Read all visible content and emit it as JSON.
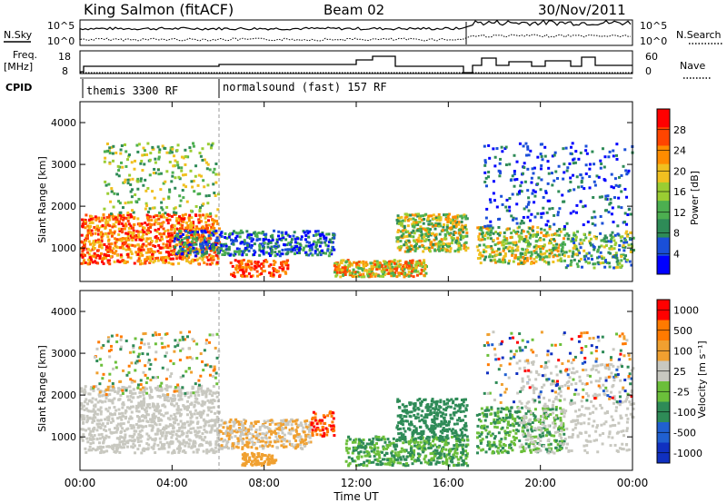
{
  "header": {
    "title": "King Salmon (fitACF)",
    "beam": "Beam 02",
    "date": "30/Nov/2011"
  },
  "top_panels": {
    "nsky_label": "N.Sky",
    "nsky_hi": "10^5",
    "nsky_lo": "10^0",
    "nsearch_hi": "10^5",
    "nsearch_lo": "10^0",
    "nsearch_label": "N.Search",
    "freq_label_1": "Freq.",
    "freq_label_2": "[MHz]",
    "freq_hi": "18",
    "freq_lo": "8",
    "nave_hi": "60",
    "nave_lo": "0",
    "nave_label": "Nave",
    "cpid_label": "CPID",
    "cpid_1": "themis 3300 RF",
    "cpid_2": "normalsound (fast) 157 RF"
  },
  "chart_data": [
    {
      "type": "heatmap",
      "name": "power",
      "ylabel": "Slant Range [km]",
      "yticks": [
        "1000",
        "2000",
        "3000",
        "4000"
      ],
      "ylim": [
        200,
        4500
      ],
      "colorbar_label": "Power [dB]",
      "colorbar_ticks": [
        "4",
        "8",
        "12",
        "16",
        "20",
        "24",
        "28"
      ],
      "colors": [
        "#0000ff",
        "#1a4fd8",
        "#2e8b57",
        "#4caf50",
        "#9acd32",
        "#f0c020",
        "#ff8c00",
        "#ff4500",
        "#ff0000"
      ]
    },
    {
      "type": "heatmap",
      "name": "velocity",
      "ylabel": "Slant Range [km]",
      "yticks": [
        "1000",
        "2000",
        "3000",
        "4000"
      ],
      "ylim": [
        200,
        4500
      ],
      "colorbar_label": "Velocity [m s⁻¹]",
      "colorbar_ticks": [
        "1000",
        "500",
        "100",
        "25",
        "-25",
        "-100",
        "-500",
        "-1000"
      ],
      "colors": [
        "#1030c0",
        "#2060d0",
        "#2e8b57",
        "#6bbf3a",
        "#c8c8c0",
        "#f0a030",
        "#ff7a00",
        "#ff0000"
      ]
    }
  ],
  "xaxis": {
    "label": "Time UT",
    "ticks": [
      "00:00",
      "04:00",
      "08:00",
      "12:00",
      "16:00",
      "20:00",
      "00:00"
    ]
  }
}
